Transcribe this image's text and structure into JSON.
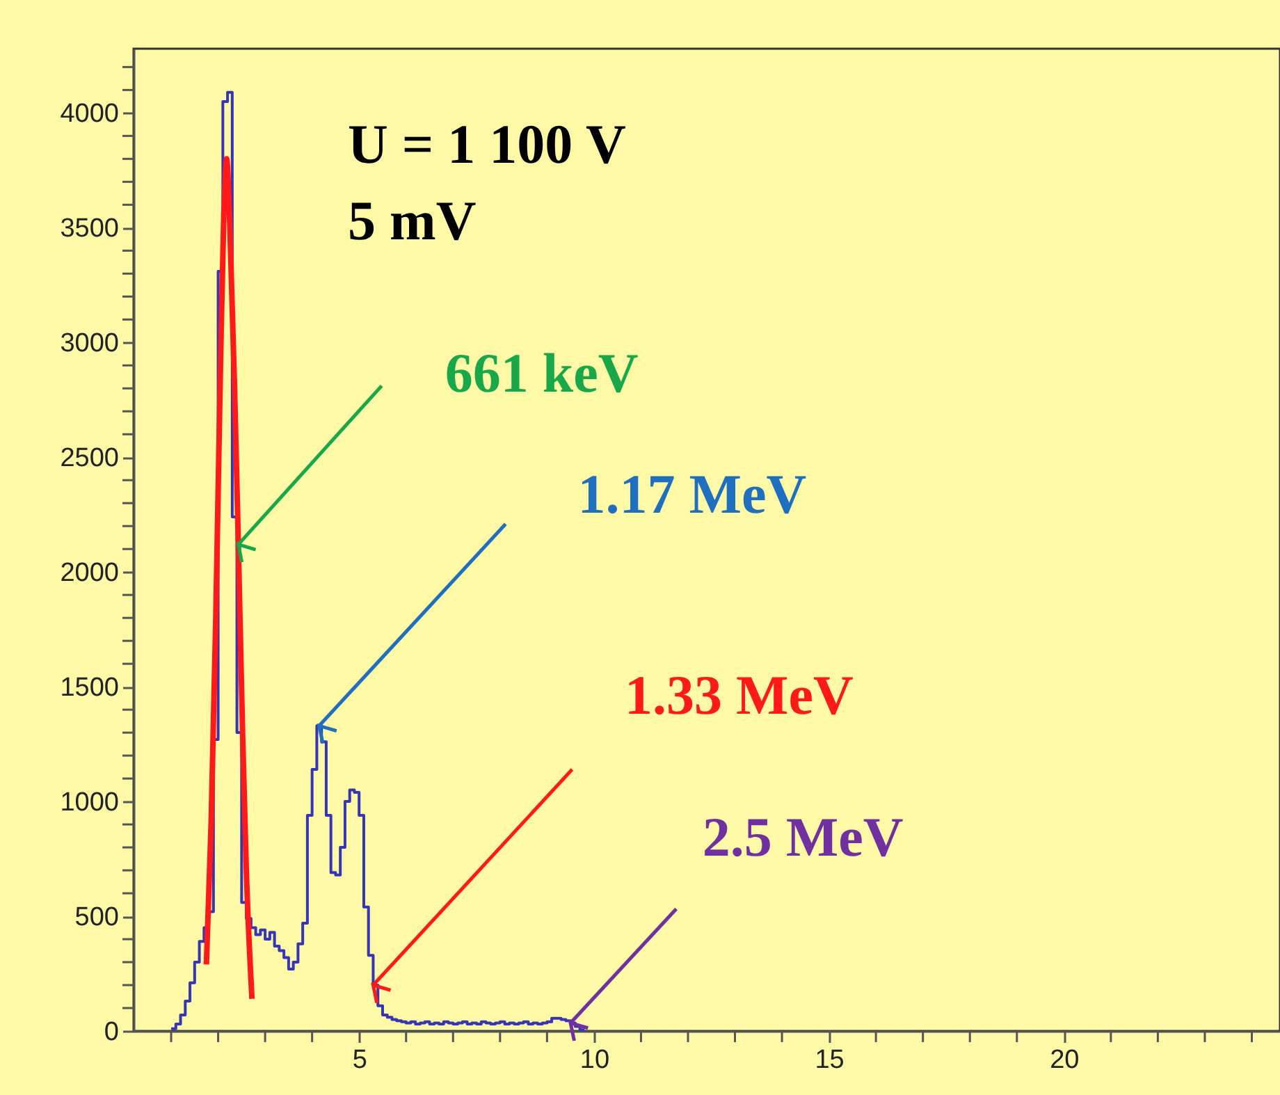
{
  "chart_data": {
    "type": "histogram",
    "xlim": [
      0.2,
      24.6
    ],
    "ylim": [
      0,
      4280
    ],
    "xticks": [
      {
        "value": 1,
        "label": null
      },
      {
        "value": 2,
        "label": null
      },
      {
        "value": 3,
        "label": null
      },
      {
        "value": 4,
        "label": null
      },
      5,
      {
        "value": 6,
        "label": null
      },
      {
        "value": 7,
        "label": null
      },
      {
        "value": 8,
        "label": null
      },
      {
        "value": 9,
        "label": null
      },
      10,
      {
        "value": 11,
        "label": null
      },
      {
        "value": 12,
        "label": null
      },
      {
        "value": 13,
        "label": null
      },
      {
        "value": 14,
        "label": null
      },
      15,
      {
        "value": 16,
        "label": null
      },
      {
        "value": 17,
        "label": null
      },
      {
        "value": 18,
        "label": null
      },
      {
        "value": 19,
        "label": null
      },
      20,
      {
        "value": 21,
        "label": null
      },
      {
        "value": 22,
        "label": null
      },
      {
        "value": 23,
        "label": null
      },
      {
        "value": 24,
        "label": null
      }
    ],
    "yticks": [
      0,
      {
        "value": 100,
        "label": null
      },
      {
        "value": 200,
        "label": null
      },
      {
        "value": 300,
        "label": null
      },
      {
        "value": 400,
        "label": null
      },
      500,
      {
        "value": 600,
        "label": null
      },
      {
        "value": 700,
        "label": null
      },
      {
        "value": 800,
        "label": null
      },
      {
        "value": 900,
        "label": null
      },
      1000,
      {
        "value": 1100,
        "label": null
      },
      {
        "value": 1200,
        "label": null
      },
      {
        "value": 1300,
        "label": null
      },
      {
        "value": 1400,
        "label": null
      },
      1500,
      {
        "value": 1600,
        "label": null
      },
      {
        "value": 1700,
        "label": null
      },
      {
        "value": 1800,
        "label": null
      },
      {
        "value": 1900,
        "label": null
      },
      2000,
      {
        "value": 2100,
        "label": null
      },
      {
        "value": 2200,
        "label": null
      },
      {
        "value": 2300,
        "label": null
      },
      {
        "value": 2400,
        "label": null
      },
      2500,
      {
        "value": 2600,
        "label": null
      },
      {
        "value": 2700,
        "label": null
      },
      {
        "value": 2800,
        "label": null
      },
      {
        "value": 2900,
        "label": null
      },
      3000,
      {
        "value": 3100,
        "label": null
      },
      {
        "value": 3200,
        "label": null
      },
      {
        "value": 3300,
        "label": null
      },
      {
        "value": 3400,
        "label": null
      },
      3500,
      {
        "value": 3600,
        "label": null
      },
      {
        "value": 3700,
        "label": null
      },
      {
        "value": 3800,
        "label": null
      },
      {
        "value": 3900,
        "label": null
      },
      4000,
      {
        "value": 4100,
        "label": null
      },
      {
        "value": 4200,
        "label": null
      }
    ],
    "grid": false,
    "series": [
      {
        "color": "#3535b5",
        "bins": [
          1.0,
          1.1,
          1.2,
          1.3,
          1.4,
          1.5,
          1.6,
          1.7,
          1.8,
          1.9,
          2.0,
          2.1,
          2.2,
          2.3,
          2.4,
          2.5,
          2.6,
          2.7,
          2.8,
          2.9,
          3.0,
          3.1,
          3.2,
          3.3,
          3.4,
          3.5,
          3.6,
          3.7,
          3.8,
          3.9,
          4.0,
          4.1,
          4.2,
          4.3,
          4.4,
          4.5,
          4.6,
          4.7,
          4.8,
          4.9,
          5.0,
          5.1,
          5.2,
          5.3,
          5.4,
          5.5,
          5.6,
          5.7,
          5.8,
          5.9,
          6.0,
          6.1,
          6.2,
          6.3,
          6.4,
          6.5,
          6.6,
          6.7,
          6.8,
          6.9,
          7.0,
          7.1,
          7.2,
          7.3,
          7.4,
          7.5,
          7.6,
          7.7,
          7.8,
          7.9,
          8.0,
          8.1,
          8.2,
          8.3,
          8.4,
          8.5,
          8.6,
          8.7,
          8.8,
          8.9,
          9.0,
          9.1,
          9.2,
          9.3,
          9.4,
          9.5,
          9.6,
          9.7,
          9.8
        ],
        "values": [
          10,
          30,
          70,
          130,
          210,
          300,
          390,
          450,
          520,
          1270,
          3310,
          4050,
          4090,
          2240,
          1300,
          560,
          490,
          450,
          420,
          440,
          400,
          430,
          370,
          350,
          320,
          270,
          300,
          380,
          470,
          940,
          1140,
          1330,
          1260,
          940,
          690,
          680,
          800,
          1000,
          1050,
          1040,
          940,
          540,
          330,
          200,
          110,
          70,
          60,
          50,
          45,
          40,
          35,
          40,
          30,
          35,
          40,
          30,
          35,
          30,
          40,
          35,
          30,
          35,
          40,
          30,
          35,
          30,
          40,
          35,
          30,
          35,
          40,
          30,
          35,
          30,
          35,
          40,
          30,
          35,
          30,
          35,
          40,
          55,
          55,
          50,
          45,
          35,
          20,
          5
        ]
      },
      {
        "type": "line",
        "color": "#ff1a1a",
        "x": [
          1.75,
          1.85,
          1.95,
          2.05,
          2.12,
          2.18,
          2.25,
          2.35,
          2.43,
          2.52,
          2.6,
          2.72
        ],
        "values": [
          290,
          900,
          1800,
          2900,
          3550,
          3800,
          3500,
          2800,
          2120,
          1300,
          700,
          140
        ]
      }
    ],
    "annotations": [
      "U = 1 100 V",
      "5 mV",
      {
        "text": "661 keV",
        "x": 2.43,
        "y": 2120
      },
      {
        "text": "1.17 MeV",
        "x": 4.15,
        "y": 1330
      },
      {
        "text": "1.33 MeV",
        "x": 5.3,
        "y": 200
      },
      {
        "text": "2.5 MeV",
        "x": 9.5,
        "y": 35
      }
    ]
  }
}
